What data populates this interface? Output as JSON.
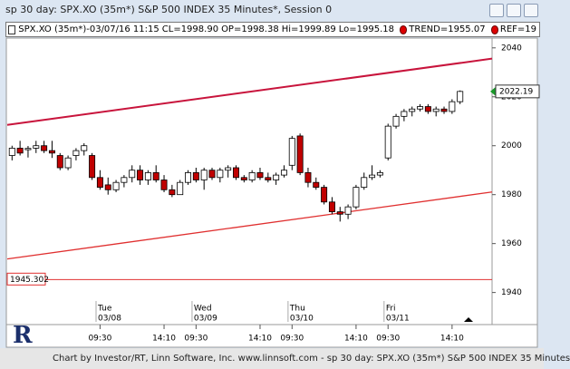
{
  "window": {
    "title": "sp 30 day: SPX.XO (35m*) S&P 500 INDEX 35 Minutes*, Session 0",
    "footer": "Chart by Investor/RT, Linn Software, Inc. www.linnsoft.com - sp 30 day: SPX.XO (35m*) S&P 500 INDEX 35 Minutes"
  },
  "chart_data": {
    "type": "candlestick",
    "info": [
      "SPX.XO (35m*)-03/07/16 11:15",
      "CL=1998.90",
      "OP=1998.38",
      "Hi=1999.89",
      "Lo=1995.18",
      "TREND=1955.07",
      "REF=19"
    ],
    "open": [
      1996,
      1999,
      1998.38,
      1999,
      2000,
      1998,
      1996,
      1991,
      1996,
      1998,
      1996,
      1987,
      1984,
      1982,
      1985,
      1987,
      1990,
      1986,
      1989,
      1986,
      1982,
      1980,
      1985,
      1989,
      1986,
      1990,
      1987,
      1990,
      1991,
      1987,
      1986,
      1989,
      1987,
      1986,
      1988,
      1992,
      2004,
      1989,
      1985,
      1983,
      1977,
      1973,
      1972,
      1975,
      1983,
      1987,
      1988,
      1995,
      2008,
      2012,
      2014,
      2015,
      2016,
      2014,
      2015,
      2014,
      2018
    ],
    "high": [
      2000,
      2002,
      1999.89,
      2002,
      2002,
      2002,
      1997,
      1996,
      1999,
      2001,
      1997,
      1990,
      1987,
      1986,
      1988,
      1992,
      1992,
      1990,
      1992,
      1988,
      1984,
      1986,
      1990,
      1991,
      1991,
      1991,
      1991,
      1992,
      1992,
      1988,
      1990,
      1991,
      1989,
      1989,
      1992,
      2004,
      2005,
      1991,
      1987,
      1984,
      1979,
      1975,
      1976,
      1984,
      1989,
      1992,
      1990,
      2009,
      2013,
      2015,
      2016,
      2017,
      2017,
      2016,
      2016,
      2019,
      2022.6
    ],
    "low": [
      1994,
      1996,
      1995.18,
      1997,
      1997,
      1995,
      1990,
      1990,
      1994,
      1996,
      1986,
      1982,
      1980,
      1981,
      1983,
      1985,
      1984,
      1984,
      1985,
      1981,
      1979,
      1980,
      1984,
      1985,
      1982,
      1986,
      1985,
      1987,
      1986,
      1985,
      1985,
      1986,
      1985,
      1984,
      1987,
      1990,
      1988,
      1983,
      1982,
      1976,
      1972,
      1969,
      1970,
      1974,
      1982,
      1986,
      1987,
      1994,
      2007,
      2010,
      2012,
      2014,
      2013,
      2012,
      2013,
      2013,
      2017
    ],
    "close": [
      1999,
      1997,
      1998.9,
      2000,
      1998,
      1997,
      1991,
      1995,
      1998,
      2000,
      1987,
      1983,
      1982,
      1985,
      1987,
      1990,
      1986,
      1989,
      1986,
      1982,
      1980,
      1985,
      1989,
      1986,
      1990,
      1987,
      1990,
      1991,
      1987,
      1986,
      1989,
      1987,
      1986,
      1988,
      1990,
      2003,
      1989,
      1985,
      1983,
      1977,
      1973,
      1972,
      1975,
      1983,
      1987,
      1988,
      1989,
      2008,
      2012,
      2014,
      2015,
      2016,
      2014,
      2015,
      2014,
      2018,
      2022.19
    ],
    "up_color": "#ffffff",
    "down_color": "#c00000",
    "xlim": [
      -0.6,
      60
    ],
    "ylim": [
      1928,
      2044
    ],
    "yticks": [
      1940,
      1960,
      1980,
      2000,
      2020,
      2040
    ],
    "xticks": [
      {
        "value": 11,
        "label": "09:30"
      },
      {
        "value": 19,
        "label": "14:10"
      },
      {
        "value": 23,
        "label": "09:30"
      },
      {
        "value": 31,
        "label": "14:10"
      },
      {
        "value": 35,
        "label": "09:30"
      },
      {
        "value": 43,
        "label": "14:10"
      },
      {
        "value": 47,
        "label": "09:30"
      },
      {
        "value": 55,
        "label": "14:10"
      }
    ],
    "day_labels": [
      {
        "value": 11,
        "label": "Tue",
        "date": "03/08"
      },
      {
        "value": 23,
        "label": "Wed",
        "date": "03/09"
      },
      {
        "value": 35,
        "label": "Thu",
        "date": "03/10"
      },
      {
        "value": 47,
        "label": "Fri",
        "date": "03/11"
      }
    ],
    "trendlines": [
      {
        "start": 2008.5,
        "end": 2035.6,
        "color": "#c8143c"
      },
      {
        "start": 1953.7,
        "end": 1981.1,
        "color": "#e03030"
      }
    ],
    "hline": {
      "value": 1945.302,
      "color": "#e03030"
    },
    "last_price_color": "#1a9a2a"
  }
}
